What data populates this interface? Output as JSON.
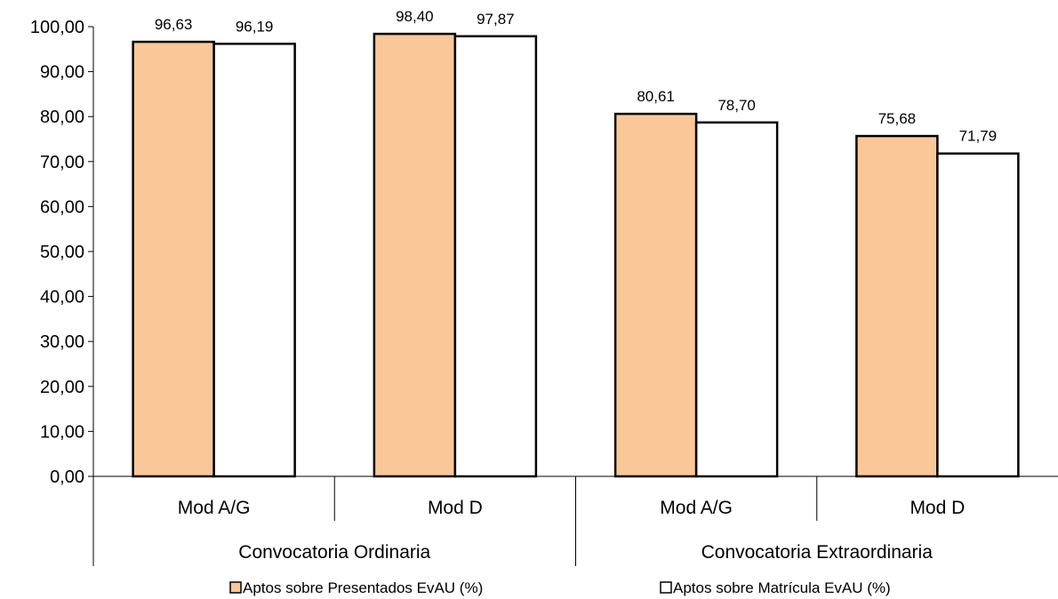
{
  "chart_data": {
    "type": "bar",
    "categories": [
      "Mod A/G",
      "Mod D",
      "Mod A/G",
      "Mod D"
    ],
    "groups": [
      "Convocatoria Ordinaria",
      "Convocatoria Extraordinaria"
    ],
    "series": [
      {
        "name": "Aptos sobre Presentados EvAU (%)",
        "color": "#fac898",
        "values": [
          96.63,
          98.4,
          80.61,
          75.68
        ],
        "labels": [
          "96,63",
          "98,40",
          "80,61",
          "75,68"
        ]
      },
      {
        "name": "Aptos sobre Matrícula EvAU (%)",
        "color": "#ffffff",
        "values": [
          96.19,
          97.87,
          78.7,
          71.79
        ],
        "labels": [
          "96,19",
          "97,87",
          "78,70",
          "71,79"
        ]
      }
    ],
    "yticks": [
      "0,00",
      "10,00",
      "20,00",
      "30,00",
      "40,00",
      "50,00",
      "60,00",
      "70,00",
      "80,00",
      "90,00",
      "100,00"
    ],
    "ylim": [
      0,
      100
    ],
    "grid": false,
    "legend_position": "bottom"
  }
}
